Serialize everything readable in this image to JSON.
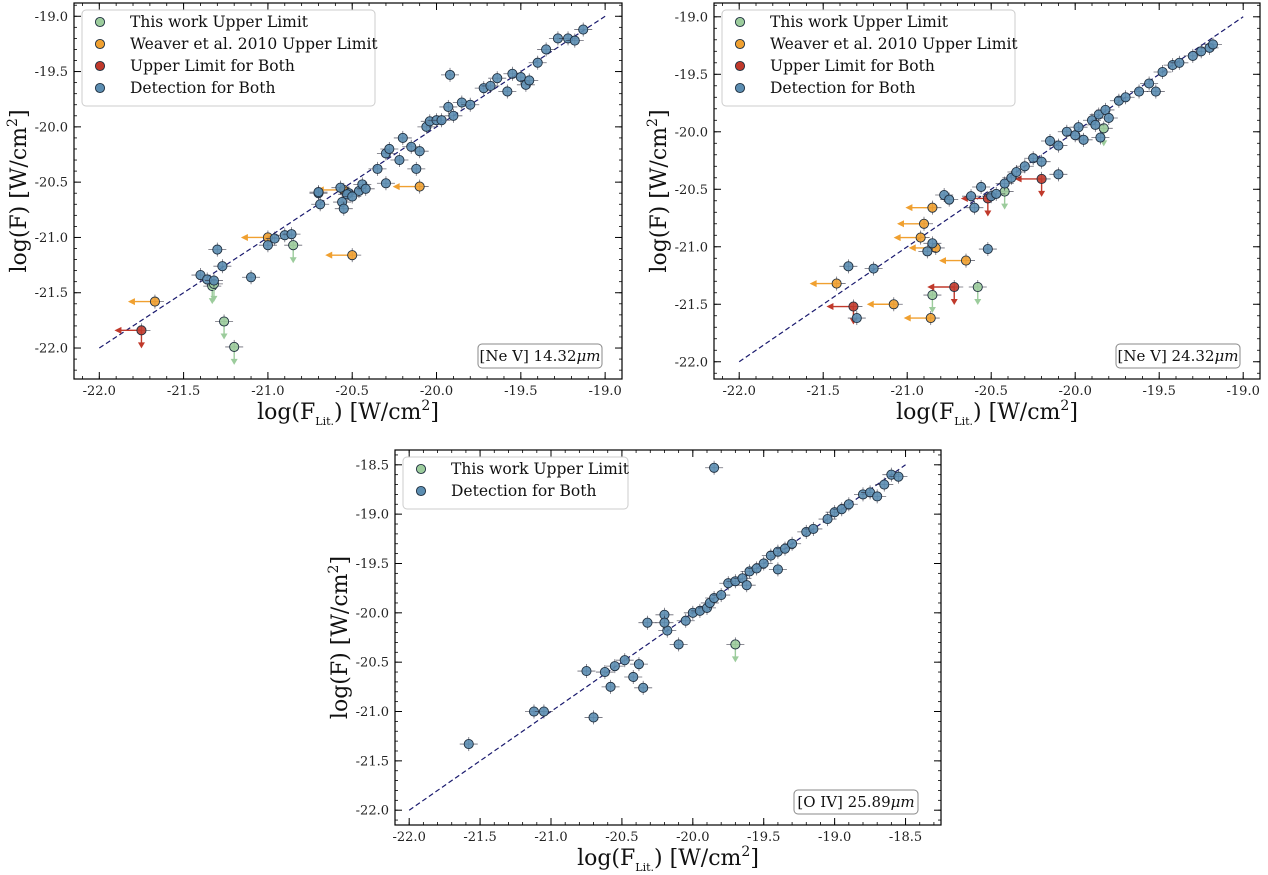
{
  "colors": {
    "this_work_upper_limit": "#9ccc9c",
    "weaver_upper_limit": "#f0a030",
    "upper_limit_both": "#c0392b",
    "detection_both": "#5b8db1",
    "one_to_one_line": "#1a1a6e"
  },
  "chart_data": [
    {
      "type": "scatter",
      "xlabel": "log(F_Lit.) [W/cm^2]",
      "ylabel": "log(F) [W/cm^2]",
      "xlim": [
        -22.15,
        -18.9
      ],
      "ylim": [
        -22.28,
        -18.88
      ],
      "xticks": [
        "-22.0",
        "-21.5",
        "-21.0",
        "-20.5",
        "-20.0",
        "-19.5",
        "-19.0"
      ],
      "xtick_values": [
        -22.0,
        -21.5,
        -21.0,
        -20.5,
        -20.0,
        -19.5,
        -19.0
      ],
      "yticks": [
        "-19.0",
        "-19.5",
        "-20.0",
        "-20.5",
        "-21.0",
        "-21.5",
        "-22.0"
      ],
      "ytick_values": [
        -19.0,
        -19.5,
        -20.0,
        -20.5,
        -21.0,
        -21.5,
        -22.0
      ],
      "annotation": "[Ne V] 14.32",
      "annotation_unit": "μm",
      "legend": [
        "This work Upper Limit",
        "Weaver et al. 2010 Upper Limit",
        "Upper Limit for Both",
        "Detection for Both"
      ],
      "legend_location": "upper left",
      "one_to_one": [
        -22.0,
        -19.0
      ],
      "series": [
        {
          "name": "This work Upper Limit",
          "color": "#9ccc9c",
          "marker": "down-arrow",
          "x": [
            -21.33,
            -21.32,
            -21.26,
            -21.2,
            -20.85
          ],
          "y": [
            -21.44,
            -21.42,
            -21.76,
            -21.99,
            -21.07
          ]
        },
        {
          "name": "Weaver et al. 2010 Upper Limit",
          "color": "#f0a030",
          "marker": "left-arrow",
          "x": [
            -21.67,
            -20.5,
            -20.1,
            -20.55,
            -21.0
          ],
          "y": [
            -21.58,
            -21.16,
            -20.54,
            -20.57,
            -21.0
          ]
        },
        {
          "name": "Upper Limit for Both",
          "color": "#c0392b",
          "marker": "left-down-arrow",
          "x": [
            -21.75
          ],
          "y": [
            -21.84
          ]
        },
        {
          "name": "Detection for Both",
          "color": "#5b8db1",
          "marker": "circle",
          "x": [
            -21.4,
            -21.36,
            -21.3,
            -21.27,
            -21.1,
            -21.0,
            -20.96,
            -20.9,
            -20.86,
            -20.7,
            -20.69,
            -20.57,
            -20.56,
            -20.55,
            -20.52,
            -20.46,
            -20.44,
            -20.42,
            -20.35,
            -20.3,
            -20.28,
            -20.22,
            -20.2,
            -20.15,
            -20.1,
            -20.06,
            -20.04,
            -20.0,
            -19.97,
            -19.93,
            -19.9,
            -19.85,
            -19.8,
            -19.72,
            -19.68,
            -19.64,
            -19.58,
            -19.55,
            -19.5,
            -19.47,
            -19.45,
            -19.4,
            -19.35,
            -19.28,
            -19.22,
            -19.18,
            -19.13,
            -21.32,
            -20.53,
            -20.3,
            -19.92,
            -20.12,
            -20.7,
            -20.5
          ],
          "y": [
            -21.34,
            -21.38,
            -21.11,
            -21.26,
            -21.36,
            -21.07,
            -21.01,
            -20.98,
            -20.97,
            -20.6,
            -20.7,
            -20.55,
            -20.68,
            -20.74,
            -20.6,
            -20.58,
            -20.52,
            -20.56,
            -20.38,
            -20.24,
            -20.2,
            -20.3,
            -20.1,
            -20.18,
            -20.22,
            -20.0,
            -19.95,
            -19.94,
            -19.94,
            -19.82,
            -19.9,
            -19.78,
            -19.8,
            -19.65,
            -19.63,
            -19.56,
            -19.68,
            -19.52,
            -19.55,
            -19.62,
            -19.58,
            -19.42,
            -19.3,
            -19.2,
            -19.2,
            -19.22,
            -19.12,
            -21.39,
            -20.61,
            -20.51,
            -19.53,
            -20.38,
            -20.59,
            -20.63
          ]
        }
      ]
    },
    {
      "type": "scatter",
      "xlabel": "log(F_Lit.) [W/cm^2]",
      "ylabel": "log(F) [W/cm^2]",
      "xlim": [
        -22.15,
        -18.9
      ],
      "ylim": [
        -22.15,
        -18.88
      ],
      "xticks": [
        "-22.0",
        "-21.5",
        "-21.0",
        "-20.5",
        "-20.0",
        "-19.5",
        "-19.0"
      ],
      "xtick_values": [
        -22.0,
        -21.5,
        -21.0,
        -20.5,
        -20.0,
        -19.5,
        -19.0
      ],
      "yticks": [
        "-19.0",
        "-19.5",
        "-20.0",
        "-20.5",
        "-21.0",
        "-21.5",
        "-22.0"
      ],
      "ytick_values": [
        -19.0,
        -19.5,
        -20.0,
        -20.5,
        -21.0,
        -21.5,
        -22.0
      ],
      "annotation": "[Ne V] 24.32",
      "annotation_unit": "μm",
      "legend": [
        "This work Upper Limit",
        "Weaver et al. 2010 Upper Limit",
        "Upper Limit for Both",
        "Detection for Both"
      ],
      "legend_location": "upper left",
      "one_to_one": [
        -22.0,
        -19.0
      ],
      "series": [
        {
          "name": "This work Upper Limit",
          "color": "#9ccc9c",
          "marker": "down-arrow",
          "x": [
            -20.85,
            -20.58,
            -19.83,
            -20.42
          ],
          "y": [
            -21.42,
            -21.35,
            -19.97,
            -20.52
          ]
        },
        {
          "name": "Weaver et al. 2010 Upper Limit",
          "color": "#f0a030",
          "marker": "left-arrow",
          "x": [
            -21.42,
            -20.85,
            -20.9,
            -20.83,
            -20.65,
            -20.92,
            -20.86,
            -21.08
          ],
          "y": [
            -21.32,
            -20.66,
            -20.8,
            -21.01,
            -21.12,
            -20.92,
            -21.62,
            -21.5
          ]
        },
        {
          "name": "Upper Limit for Both",
          "color": "#c0392b",
          "marker": "left-down-arrow",
          "x": [
            -21.32,
            -20.72,
            -20.52,
            -20.2
          ],
          "y": [
            -21.52,
            -21.35,
            -20.58,
            -20.41
          ]
        },
        {
          "name": "Detection for Both",
          "color": "#5b8db1",
          "marker": "circle",
          "x": [
            -21.35,
            -21.2,
            -21.3,
            -20.88,
            -20.85,
            -20.78,
            -20.75,
            -20.6,
            -20.56,
            -20.5,
            -20.47,
            -20.42,
            -20.38,
            -20.35,
            -20.3,
            -20.25,
            -20.2,
            -20.15,
            -20.1,
            -20.05,
            -20.0,
            -19.98,
            -19.95,
            -19.9,
            -19.86,
            -19.82,
            -19.8,
            -19.74,
            -19.7,
            -19.62,
            -19.56,
            -19.52,
            -19.48,
            -19.42,
            -19.38,
            -19.3,
            -19.25,
            -19.2,
            -19.18,
            -20.62,
            -20.52,
            -19.88,
            -20.1,
            -19.85
          ],
          "y": [
            -21.17,
            -21.19,
            -21.62,
            -21.04,
            -20.97,
            -20.55,
            -20.59,
            -20.66,
            -20.48,
            -20.56,
            -20.54,
            -20.45,
            -20.4,
            -20.35,
            -20.3,
            -20.23,
            -20.26,
            -20.08,
            -20.12,
            -20.0,
            -20.03,
            -19.96,
            -20.07,
            -19.9,
            -19.85,
            -19.81,
            -19.88,
            -19.73,
            -19.7,
            -19.65,
            -19.58,
            -19.65,
            -19.48,
            -19.42,
            -19.4,
            -19.34,
            -19.3,
            -19.27,
            -19.24,
            -20.56,
            -21.02,
            -19.94,
            -20.37,
            -20.05
          ]
        }
      ]
    },
    {
      "type": "scatter",
      "xlabel": "log(F_Lit.) [W/cm^2]",
      "ylabel": "log(F) [W/cm^2]",
      "xlim": [
        -22.1,
        -18.25
      ],
      "ylim": [
        -22.15,
        -18.35
      ],
      "xticks": [
        "-22.0",
        "-21.5",
        "-21.0",
        "-20.5",
        "-20.0",
        "-19.5",
        "-19.0",
        "-18.5"
      ],
      "xtick_values": [
        -22.0,
        -21.5,
        -21.0,
        -20.5,
        -20.0,
        -19.5,
        -19.0,
        -18.5
      ],
      "yticks": [
        "-18.5",
        "-19.0",
        "-19.5",
        "-20.0",
        "-20.5",
        "-21.0",
        "-21.5",
        "-22.0"
      ],
      "ytick_values": [
        -18.5,
        -19.0,
        -19.5,
        -20.0,
        -20.5,
        -21.0,
        -21.5,
        -22.0
      ],
      "annotation": "[O IV] 25.89",
      "annotation_unit": "μm",
      "legend": [
        "This work Upper Limit",
        "Detection for Both"
      ],
      "legend_location": "upper left",
      "one_to_one": [
        -22.0,
        -18.5
      ],
      "series": [
        {
          "name": "This work Upper Limit",
          "color": "#9ccc9c",
          "marker": "down-arrow",
          "x": [
            -19.7
          ],
          "y": [
            -20.32
          ]
        },
        {
          "name": "Detection for Both",
          "color": "#5b8db1",
          "marker": "circle",
          "x": [
            -21.58,
            -21.12,
            -21.05,
            -20.7,
            -20.75,
            -20.62,
            -20.58,
            -20.55,
            -20.48,
            -20.42,
            -20.38,
            -20.35,
            -20.32,
            -20.2,
            -20.18,
            -20.1,
            -20.05,
            -20.0,
            -19.95,
            -19.9,
            -19.88,
            -19.85,
            -19.8,
            -19.75,
            -19.7,
            -19.65,
            -19.6,
            -19.55,
            -19.5,
            -19.45,
            -19.4,
            -19.35,
            -19.3,
            -19.2,
            -19.15,
            -19.05,
            -19.0,
            -18.95,
            -18.9,
            -18.8,
            -18.75,
            -18.7,
            -18.65,
            -18.6,
            -18.55,
            -19.85,
            -20.2,
            -19.62,
            -19.4
          ],
          "y": [
            -21.33,
            -21.0,
            -21.0,
            -21.06,
            -20.59,
            -20.6,
            -20.75,
            -20.54,
            -20.48,
            -20.65,
            -20.52,
            -20.76,
            -20.1,
            -20.02,
            -20.18,
            -20.32,
            -20.08,
            -20.0,
            -19.98,
            -19.95,
            -19.9,
            -19.85,
            -19.82,
            -19.7,
            -19.68,
            -19.65,
            -19.58,
            -19.55,
            -19.5,
            -19.42,
            -19.38,
            -19.35,
            -19.3,
            -19.18,
            -19.15,
            -19.05,
            -18.98,
            -18.95,
            -18.9,
            -18.8,
            -18.78,
            -18.82,
            -18.7,
            -18.6,
            -18.62,
            -18.53,
            -20.1,
            -19.72,
            -19.56
          ]
        }
      ]
    }
  ]
}
